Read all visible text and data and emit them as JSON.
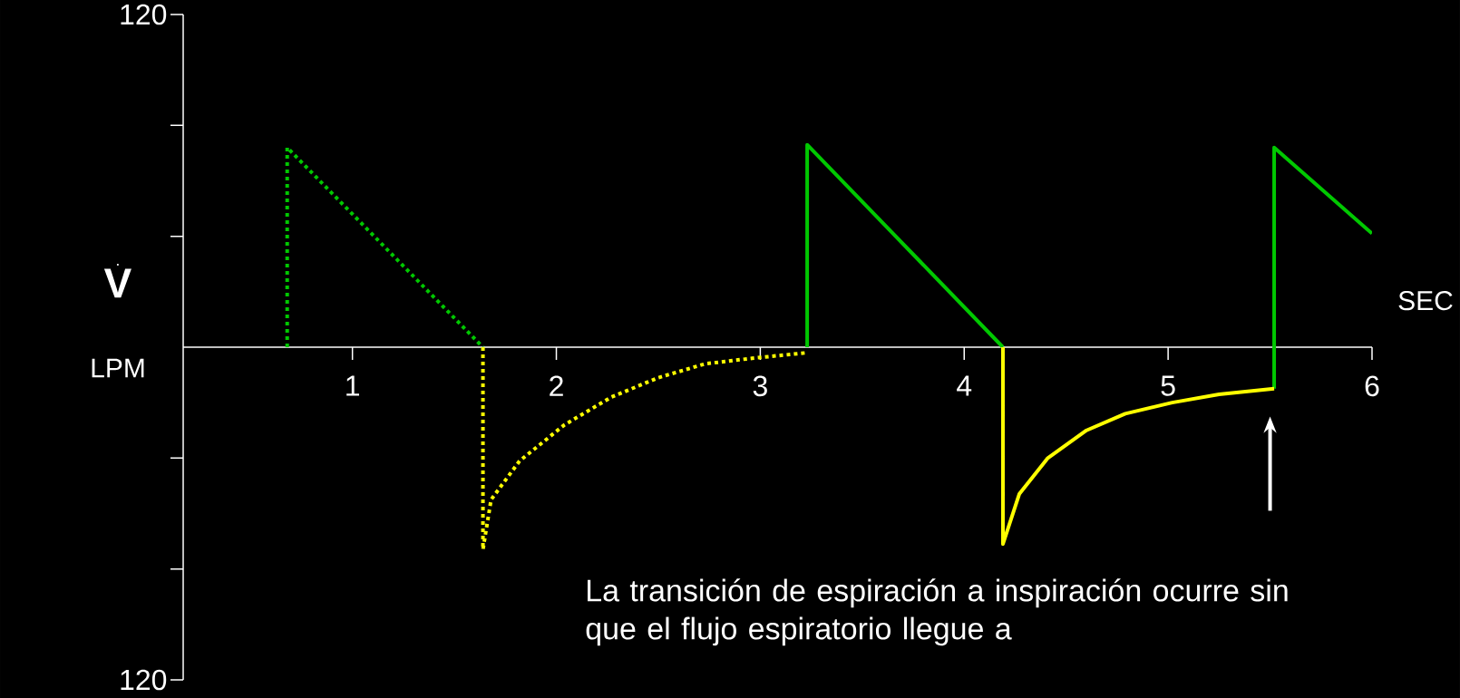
{
  "chart_data": {
    "type": "line",
    "xlabel": "SEC",
    "ylabel": "\\dot{\\mathbf{V}}",
    "annotations": [
      "LPM",
      "La transición de espiración a inspiración ocurre sin que el flujo espiratorio llegue a"
    ],
    "xlim": [
      0.17,
      6
    ],
    "ylim": [
      -120,
      120
    ],
    "xticks": [
      1,
      2,
      3,
      4,
      5,
      6
    ],
    "yticks": [
      {
        "value": 120,
        "label": "120"
      },
      {
        "value": 80,
        "label": null
      },
      {
        "value": 40,
        "label": null
      },
      {
        "value": -40,
        "label": null
      },
      {
        "value": -80,
        "label": null
      },
      {
        "value": -120,
        "label": "120"
      }
    ],
    "series": [
      {
        "color": "#00c800",
        "line_style": "dotted",
        "x": [
          0.68,
          0.68,
          1.64
        ],
        "values": [
          0,
          72,
          0
        ]
      },
      {
        "color": "#ffff00",
        "line_style": "dotted",
        "x": [
          1.64,
          1.64,
          1.68,
          1.82,
          2.04,
          2.27,
          2.5,
          2.73,
          2.96,
          3.23
        ],
        "values": [
          0,
          -73,
          -55,
          -41,
          -28,
          -18,
          -11,
          -6,
          -4,
          -2
        ]
      },
      {
        "color": "#00c800",
        "line_style": "solid",
        "x": [
          3.23,
          3.23,
          4.19,
          4.8,
          5.52,
          5.52,
          6.0
        ],
        "values": [
          0,
          73,
          0,
          null,
          -15,
          72,
          41
        ]
      },
      {
        "color": "#ffff00",
        "line_style": "solid",
        "x": [
          4.19,
          4.19,
          4.27,
          4.41,
          4.6,
          4.79,
          5.02,
          5.25,
          5.52
        ],
        "values": [
          0,
          -71,
          -53,
          -40,
          -30,
          -24,
          -20,
          -17,
          -15
        ]
      }
    ]
  }
}
